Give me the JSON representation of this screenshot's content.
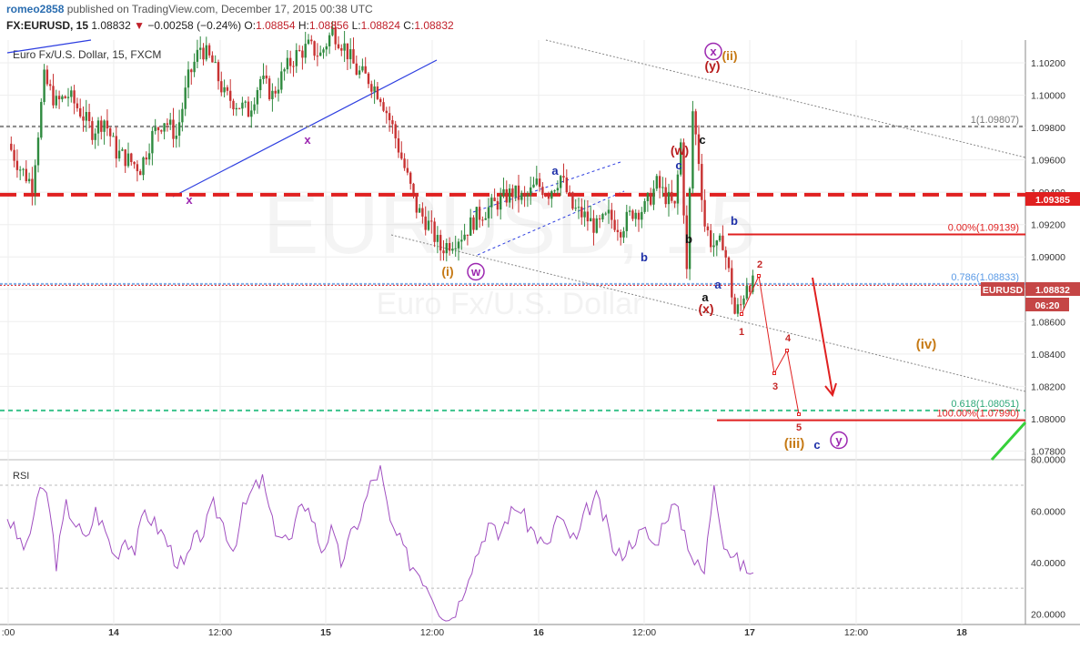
{
  "header": {
    "user": "romeo2858",
    "published": "published on TradingView.com, December 17, 2015 00:38 UTC",
    "symbol": "FX:EURUSD, 15",
    "last": "1.08832",
    "change": "−0.00258 (−0.24%)",
    "ohlc": {
      "o": "1.08854",
      "h": "1.08856",
      "l": "1.08824",
      "c": "1.08832"
    }
  },
  "chart_data": {
    "type": "candlestick",
    "title": "Euro Fx/U.S. Dollar, 15, FXCM",
    "watermark": {
      "symbol": "EURUSD, 15",
      "name": "Euro Fx/U.S. Dollar"
    },
    "x_ticks": [
      ":00",
      "14",
      "12:00",
      "15",
      "12:00",
      "16",
      "12:00",
      "17",
      "12:00",
      "18"
    ],
    "y_ticks": [
      1.078,
      1.08,
      1.082,
      1.084,
      1.086,
      1.088,
      1.09,
      1.092,
      1.094,
      1.096,
      1.098,
      1.1,
      1.102
    ],
    "y_range": [
      1.07746,
      1.10341
    ],
    "price_path": [
      [
        0,
        1.097
      ],
      [
        4,
        1.0955
      ],
      [
        8,
        1.0945
      ],
      [
        12,
        1.101
      ],
      [
        16,
        1.0995
      ],
      [
        20,
        1.1
      ],
      [
        24,
        1.099
      ],
      [
        28,
        1.0978
      ],
      [
        32,
        1.0985
      ],
      [
        36,
        1.0965
      ],
      [
        40,
        1.096
      ],
      [
        44,
        1.0955
      ],
      [
        48,
        1.0975
      ],
      [
        52,
        1.0985
      ],
      [
        56,
        1.0975
      ],
      [
        60,
        1.101
      ],
      [
        64,
        1.103
      ],
      [
        68,
        1.102
      ],
      [
        72,
        1.1
      ],
      [
        76,
        1.0995
      ],
      [
        80,
        1.099
      ],
      [
        84,
        1.101
      ],
      [
        88,
        1.1
      ],
      [
        92,
        1.1015
      ],
      [
        96,
        1.1025
      ],
      [
        100,
        1.103
      ],
      [
        104,
        1.1025
      ],
      [
        108,
        1.104
      ],
      [
        112,
        1.103
      ],
      [
        116,
        1.1015
      ],
      [
        120,
        1.101
      ],
      [
        124,
        1.1
      ],
      [
        128,
        1.098
      ],
      [
        132,
        1.0955
      ],
      [
        136,
        1.093
      ],
      [
        140,
        1.092
      ],
      [
        144,
        1.0905
      ],
      [
        148,
        1.091
      ],
      [
        152,
        1.0915
      ],
      [
        156,
        1.0925
      ],
      [
        160,
        1.093
      ],
      [
        164,
        1.0935
      ],
      [
        168,
        1.094
      ],
      [
        172,
        1.0935
      ],
      [
        176,
        1.0945
      ],
      [
        180,
        1.094
      ],
      [
        184,
        1.095
      ],
      [
        188,
        1.093
      ],
      [
        192,
        1.0925
      ],
      [
        196,
        1.0918
      ],
      [
        200,
        1.0925
      ],
      [
        204,
        1.0918
      ],
      [
        208,
        1.0928
      ],
      [
        212,
        1.093
      ],
      [
        216,
        1.0945
      ],
      [
        220,
        1.0935
      ],
      [
        222,
        1.093
      ],
      [
        224,
        1.097
      ],
      [
        226,
        1.089
      ],
      [
        228,
        1.099
      ],
      [
        230,
        1.096
      ],
      [
        232,
        1.092
      ],
      [
        234,
        1.091
      ],
      [
        236,
        1.0905
      ],
      [
        238,
        1.091
      ],
      [
        240,
        1.089
      ],
      [
        242,
        1.0865
      ],
      [
        244,
        1.087
      ],
      [
        246,
        1.0885
      ],
      [
        248,
        1.0883
      ]
    ],
    "horizontal_levels": [
      {
        "label": "1(1.09807)",
        "value": 1.09807,
        "style": "gray-dashed"
      },
      {
        "label": "",
        "value": 1.09385,
        "style": "red-thick-dashed"
      },
      {
        "label": "0.00%(1.09139)",
        "value": 1.09139,
        "style": "red"
      },
      {
        "label": "0.786(1.08833)",
        "value": 1.08833,
        "style": "blue"
      },
      {
        "label": "0.618(1.08051)",
        "value": 1.08051,
        "style": "green-dashed"
      },
      {
        "label": "100.00%(1.07990)",
        "value": 1.0799,
        "style": "red"
      }
    ],
    "price_badges": [
      {
        "text": "1.09385",
        "color": "#e02020"
      },
      {
        "text": "EURUSD",
        "color": "#c54646"
      },
      {
        "text": "1.08832",
        "color": "#c54646"
      },
      {
        "text": "06:20",
        "color": "#c54646"
      }
    ],
    "wave_labels": [
      "x",
      "x",
      "(i)",
      "w",
      "a",
      "b",
      "c",
      "(w)",
      "a",
      "b",
      "c",
      "b",
      "a",
      "(x)",
      "x",
      "(y)",
      "(ii)",
      "1",
      "2",
      "3",
      "4",
      "5",
      "(iii)",
      "c",
      "y",
      "(iv)"
    ],
    "rsi": {
      "label": "RSI",
      "y_ticks": [
        20,
        40,
        60,
        80
      ],
      "y_range": [
        15.9,
        79.9
      ],
      "bands": [
        30,
        70
      ],
      "values": [
        58,
        50,
        45,
        65,
        68,
        40,
        62,
        55,
        48,
        60,
        52,
        42,
        50,
        45,
        60,
        55,
        50,
        42,
        38,
        48,
        52,
        62,
        55,
        45,
        60,
        68,
        72,
        55,
        50,
        48,
        65,
        58,
        45,
        52,
        40,
        50,
        58,
        70,
        76,
        55,
        48,
        40,
        36,
        30,
        22,
        18,
        24,
        36,
        45,
        55,
        50,
        58,
        62,
        55,
        50,
        45,
        58,
        52,
        48,
        60,
        65,
        55,
        42,
        45,
        50,
        52,
        46,
        58,
        62,
        52,
        40,
        36,
        72,
        48,
        42,
        38,
        36
      ]
    }
  },
  "colors": {
    "up": "#2f8a3f",
    "down": "#c83232",
    "rsi": "#a04fc0",
    "red_level": "#e02020",
    "green_level": "#3bc38c",
    "blue_wave": "#1d2fa8",
    "purple_wave": "#9c27b0",
    "orange_wave": "#c67a16",
    "dark_red_wave": "#b71c1c"
  }
}
